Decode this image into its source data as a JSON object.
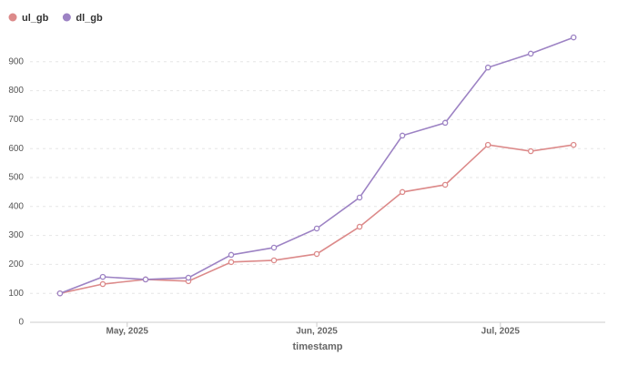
{
  "chart_data": {
    "type": "line",
    "x": [
      0,
      1,
      2,
      3,
      4,
      5,
      6,
      7,
      8,
      9,
      10,
      11,
      12
    ],
    "xlim": [
      -0.7,
      12.74
    ],
    "xticks": [
      {
        "value": 1.57,
        "label": "May, 2025"
      },
      {
        "value": 6,
        "label": "Jun, 2025"
      },
      {
        "value": 10.29,
        "label": "Jul, 2025"
      }
    ],
    "xlabel": "timestamp",
    "ylim": [
      0,
      1000
    ],
    "yticks": [
      0,
      100,
      200,
      300,
      400,
      500,
      600,
      700,
      800,
      900
    ],
    "grid": true,
    "legend": "top-left",
    "series": [
      {
        "name": "ul_gb",
        "color": "#dc8a8a",
        "values": [
          100,
          132,
          148,
          142,
          208,
          214,
          236,
          330,
          450,
          475,
          613,
          591,
          613
        ]
      },
      {
        "name": "dl_gb",
        "color": "#9d83c4",
        "values": [
          100,
          157,
          148,
          154,
          233,
          258,
          324,
          431,
          645,
          689,
          880,
          928,
          984
        ]
      }
    ]
  }
}
